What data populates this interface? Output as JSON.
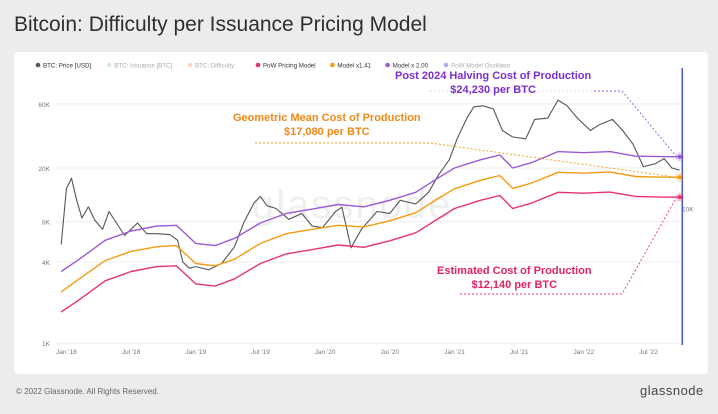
{
  "title": "Bitcoin: Difficulty per Issuance Pricing Model",
  "footer": "© 2022 Glassnode. All Rights Reserved.",
  "logo": "glassnode",
  "watermark": "glassnode",
  "chart_data": {
    "type": "line",
    "y_scale": "log",
    "ylim": [
      1000,
      100000
    ],
    "y_ticks": [
      {
        "value": 1000,
        "label": "1K"
      },
      {
        "value": 4000,
        "label": "4K"
      },
      {
        "value": 8000,
        "label": "8K"
      },
      {
        "value": 20000,
        "label": "20K"
      },
      {
        "value": 60000,
        "label": "60K"
      }
    ],
    "right_tick": {
      "value": 10000,
      "label": "10K"
    },
    "x_ticks": [
      "Jan '18",
      "Jul '18",
      "Jan '19",
      "Jul '19",
      "Jan '20",
      "Jul '20",
      "Jan '21",
      "Jul '21",
      "Jan '22",
      "Jul '22"
    ],
    "legend": [
      {
        "name": "BTC: Price [USD]",
        "color": "#555555",
        "active": true
      },
      {
        "name": "BTC: Issuance [BTC]",
        "color": "#9ec7e0",
        "active": false
      },
      {
        "name": "BTC: Difficulty",
        "color": "#f0a27a",
        "active": false
      },
      {
        "name": "PoW Pricing Model",
        "color": "#e8336d",
        "active": true
      },
      {
        "name": "Model x1.41",
        "color": "#f39c12",
        "active": true
      },
      {
        "name": "Model x 2.00",
        "color": "#9b59d6",
        "active": true
      },
      {
        "name": "PoW Model Oscillator",
        "color": "#3b4fd8",
        "active": false
      }
    ],
    "series": [
      {
        "name": "BTC: Price [USD]",
        "color": "#555555",
        "values": [
          [
            2017.96,
            5400
          ],
          [
            2018.0,
            14000
          ],
          [
            2018.04,
            16800
          ],
          [
            2018.08,
            11500
          ],
          [
            2018.12,
            8500
          ],
          [
            2018.17,
            10300
          ],
          [
            2018.22,
            8200
          ],
          [
            2018.28,
            7000
          ],
          [
            2018.33,
            9500
          ],
          [
            2018.38,
            8000
          ],
          [
            2018.45,
            6300
          ],
          [
            2018.55,
            7800
          ],
          [
            2018.62,
            6500
          ],
          [
            2018.7,
            6500
          ],
          [
            2018.8,
            6400
          ],
          [
            2018.86,
            5800
          ],
          [
            2018.9,
            4000
          ],
          [
            2018.95,
            3600
          ],
          [
            2019.0,
            3700
          ],
          [
            2019.1,
            3500
          ],
          [
            2019.2,
            3900
          ],
          [
            2019.3,
            5200
          ],
          [
            2019.37,
            7800
          ],
          [
            2019.45,
            11000
          ],
          [
            2019.5,
            12300
          ],
          [
            2019.55,
            10500
          ],
          [
            2019.62,
            10000
          ],
          [
            2019.72,
            8300
          ],
          [
            2019.82,
            9200
          ],
          [
            2019.9,
            7400
          ],
          [
            2019.98,
            7200
          ],
          [
            2020.08,
            9500
          ],
          [
            2020.13,
            10200
          ],
          [
            2020.2,
            5100
          ],
          [
            2020.28,
            7000
          ],
          [
            2020.4,
            9500
          ],
          [
            2020.5,
            9200
          ],
          [
            2020.58,
            11500
          ],
          [
            2020.7,
            10800
          ],
          [
            2020.8,
            13200
          ],
          [
            2020.88,
            18000
          ],
          [
            2020.96,
            23000
          ],
          [
            2021.02,
            33000
          ],
          [
            2021.1,
            48000
          ],
          [
            2021.15,
            57000
          ],
          [
            2021.22,
            58000
          ],
          [
            2021.3,
            55000
          ],
          [
            2021.37,
            38000
          ],
          [
            2021.45,
            34000
          ],
          [
            2021.55,
            33000
          ],
          [
            2021.62,
            46000
          ],
          [
            2021.72,
            47000
          ],
          [
            2021.8,
            64000
          ],
          [
            2021.87,
            58000
          ],
          [
            2021.95,
            47000
          ],
          [
            2022.05,
            38000
          ],
          [
            2022.12,
            42000
          ],
          [
            2022.22,
            46000
          ],
          [
            2022.3,
            38000
          ],
          [
            2022.38,
            30000
          ],
          [
            2022.46,
            20500
          ],
          [
            2022.55,
            21500
          ],
          [
            2022.62,
            23500
          ],
          [
            2022.68,
            20000
          ],
          [
            2022.74,
            19300
          ]
        ]
      },
      {
        "name": "Model x 2.00",
        "color": "#9b59d6",
        "values": [
          [
            2017.96,
            3400
          ],
          [
            2018.1,
            4200
          ],
          [
            2018.3,
            5800
          ],
          [
            2018.5,
            6800
          ],
          [
            2018.7,
            7400
          ],
          [
            2018.85,
            7500
          ],
          [
            2019.0,
            5500
          ],
          [
            2019.15,
            5300
          ],
          [
            2019.3,
            6000
          ],
          [
            2019.5,
            7800
          ],
          [
            2019.7,
            9200
          ],
          [
            2019.9,
            9900
          ],
          [
            2020.1,
            10700
          ],
          [
            2020.3,
            10300
          ],
          [
            2020.5,
            11500
          ],
          [
            2020.7,
            13200
          ],
          [
            2020.9,
            17500
          ],
          [
            2021.0,
            20000
          ],
          [
            2021.2,
            23000
          ],
          [
            2021.35,
            25000
          ],
          [
            2021.45,
            20000
          ],
          [
            2021.6,
            22000
          ],
          [
            2021.8,
            26500
          ],
          [
            2022.0,
            26000
          ],
          [
            2022.2,
            26500
          ],
          [
            2022.4,
            24500
          ],
          [
            2022.6,
            24300
          ],
          [
            2022.74,
            24230
          ]
        ]
      },
      {
        "name": "Model x1.41",
        "color": "#f39c12",
        "values": [
          [
            2017.96,
            2400
          ],
          [
            2018.1,
            3000
          ],
          [
            2018.3,
            4100
          ],
          [
            2018.5,
            4800
          ],
          [
            2018.7,
            5200
          ],
          [
            2018.85,
            5300
          ],
          [
            2019.0,
            3900
          ],
          [
            2019.15,
            3750
          ],
          [
            2019.3,
            4200
          ],
          [
            2019.5,
            5500
          ],
          [
            2019.7,
            6500
          ],
          [
            2019.9,
            7000
          ],
          [
            2020.1,
            7500
          ],
          [
            2020.3,
            7300
          ],
          [
            2020.5,
            8100
          ],
          [
            2020.7,
            9300
          ],
          [
            2020.9,
            12300
          ],
          [
            2021.0,
            14000
          ],
          [
            2021.2,
            16200
          ],
          [
            2021.35,
            17600
          ],
          [
            2021.45,
            14100
          ],
          [
            2021.6,
            15500
          ],
          [
            2021.8,
            18600
          ],
          [
            2022.0,
            18300
          ],
          [
            2022.2,
            18700
          ],
          [
            2022.4,
            17300
          ],
          [
            2022.6,
            17100
          ],
          [
            2022.74,
            17080
          ]
        ]
      },
      {
        "name": "PoW Pricing Model",
        "color": "#e8336d",
        "values": [
          [
            2017.96,
            1700
          ],
          [
            2018.1,
            2100
          ],
          [
            2018.3,
            2900
          ],
          [
            2018.5,
            3400
          ],
          [
            2018.7,
            3700
          ],
          [
            2018.85,
            3750
          ],
          [
            2019.0,
            2750
          ],
          [
            2019.15,
            2650
          ],
          [
            2019.3,
            3000
          ],
          [
            2019.5,
            3900
          ],
          [
            2019.7,
            4600
          ],
          [
            2019.9,
            4950
          ],
          [
            2020.1,
            5350
          ],
          [
            2020.3,
            5150
          ],
          [
            2020.5,
            5750
          ],
          [
            2020.7,
            6600
          ],
          [
            2020.9,
            8700
          ],
          [
            2021.0,
            10000
          ],
          [
            2021.2,
            11500
          ],
          [
            2021.35,
            12500
          ],
          [
            2021.45,
            10000
          ],
          [
            2021.6,
            11000
          ],
          [
            2021.8,
            13200
          ],
          [
            2022.0,
            13000
          ],
          [
            2022.2,
            13250
          ],
          [
            2022.4,
            12300
          ],
          [
            2022.6,
            12150
          ],
          [
            2022.74,
            12140
          ]
        ]
      }
    ],
    "annotations": [
      {
        "line1": "Post 2024 Halving Cost of Production",
        "line2": "$24,230 per BTC",
        "color": "#7b2fd0"
      },
      {
        "line1": "Geometric Mean Cost of Production",
        "line2": "$17,080 per BTC",
        "color": "#ef8a17"
      },
      {
        "line1": "Estimated Cost of Production",
        "line2": "$12,140 per BTC",
        "color": "#e0245e"
      }
    ],
    "marker_date": 2022.76
  }
}
